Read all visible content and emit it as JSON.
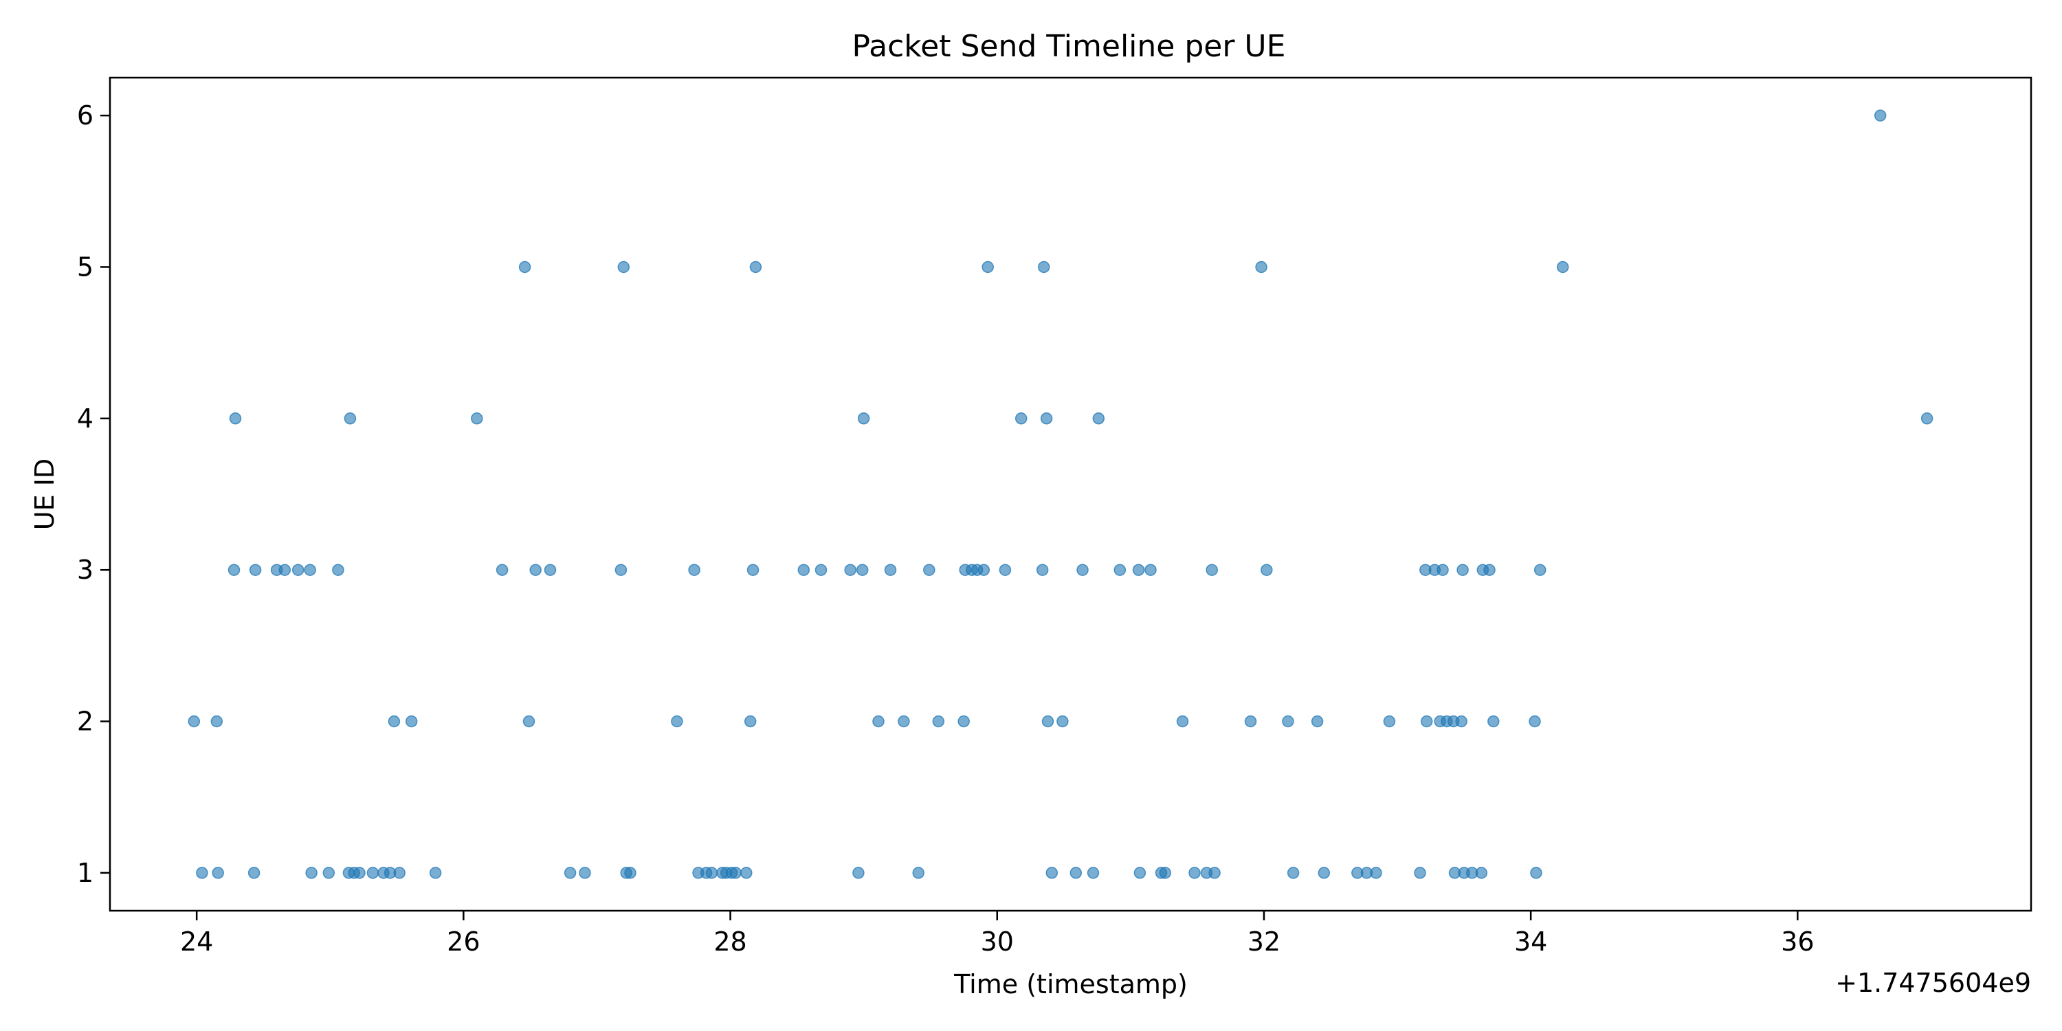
{
  "chart_data": {
    "type": "scatter",
    "title": "Packet Send Timeline per UE",
    "xlabel": "Time (timestamp)",
    "ylabel": "UE ID",
    "x_offset_label": "+1.7475604e9",
    "xlim": [
      23.35,
      37.75
    ],
    "ylim": [
      0.75,
      6.25
    ],
    "xticks": [
      24,
      26,
      28,
      30,
      32,
      34,
      36
    ],
    "yticks": [
      1,
      2,
      3,
      4,
      5,
      6
    ],
    "grid": false,
    "color": "#1f77b4",
    "series": [
      {
        "points": [
          [
            23.98,
            2
          ],
          [
            24.15,
            2
          ],
          [
            24.04,
            1
          ],
          [
            24.16,
            1
          ],
          [
            24.43,
            1
          ],
          [
            24.29,
            4
          ],
          [
            24.28,
            3
          ],
          [
            24.44,
            3
          ],
          [
            24.6,
            3
          ],
          [
            24.66,
            3
          ],
          [
            24.76,
            3
          ],
          [
            24.85,
            3
          ],
          [
            25.06,
            3
          ],
          [
            24.86,
            1
          ],
          [
            24.99,
            1
          ],
          [
            25.14,
            1
          ],
          [
            25.18,
            1
          ],
          [
            25.22,
            1
          ],
          [
            25.32,
            1
          ],
          [
            25.4,
            1
          ],
          [
            25.45,
            1
          ],
          [
            25.52,
            1
          ],
          [
            25.79,
            1
          ],
          [
            25.15,
            4
          ],
          [
            25.48,
            2
          ],
          [
            25.61,
            2
          ],
          [
            26.1,
            4
          ],
          [
            26.29,
            3
          ],
          [
            26.46,
            5
          ],
          [
            26.49,
            2
          ],
          [
            26.54,
            3
          ],
          [
            26.65,
            3
          ],
          [
            26.8,
            1
          ],
          [
            26.91,
            1
          ],
          [
            27.2,
            5
          ],
          [
            27.18,
            3
          ],
          [
            27.22,
            1
          ],
          [
            27.25,
            1
          ],
          [
            27.6,
            2
          ],
          [
            27.73,
            3
          ],
          [
            27.76,
            1
          ],
          [
            27.82,
            1
          ],
          [
            27.86,
            1
          ],
          [
            27.94,
            1
          ],
          [
            27.97,
            1
          ],
          [
            28.01,
            1
          ],
          [
            28.04,
            1
          ],
          [
            28.12,
            1
          ],
          [
            28.15,
            2
          ],
          [
            28.17,
            3
          ],
          [
            28.19,
            5
          ],
          [
            28.55,
            3
          ],
          [
            28.68,
            3
          ],
          [
            28.9,
            3
          ],
          [
            28.99,
            3
          ],
          [
            28.96,
            1
          ],
          [
            29.0,
            4
          ],
          [
            29.11,
            2
          ],
          [
            29.2,
            3
          ],
          [
            29.3,
            2
          ],
          [
            29.41,
            1
          ],
          [
            29.49,
            3
          ],
          [
            29.56,
            2
          ],
          [
            29.75,
            2
          ],
          [
            29.76,
            3
          ],
          [
            29.81,
            3
          ],
          [
            29.85,
            3
          ],
          [
            29.9,
            3
          ],
          [
            29.93,
            5
          ],
          [
            30.06,
            3
          ],
          [
            30.18,
            4
          ],
          [
            30.34,
            3
          ],
          [
            30.35,
            5
          ],
          [
            30.37,
            4
          ],
          [
            30.38,
            2
          ],
          [
            30.41,
            1
          ],
          [
            30.49,
            2
          ],
          [
            30.59,
            1
          ],
          [
            30.64,
            3
          ],
          [
            30.72,
            1
          ],
          [
            30.76,
            4
          ],
          [
            30.92,
            3
          ],
          [
            31.06,
            3
          ],
          [
            31.07,
            1
          ],
          [
            31.15,
            3
          ],
          [
            31.23,
            1
          ],
          [
            31.26,
            1
          ],
          [
            31.39,
            2
          ],
          [
            31.48,
            1
          ],
          [
            31.57,
            1
          ],
          [
            31.61,
            3
          ],
          [
            31.63,
            1
          ],
          [
            31.9,
            2
          ],
          [
            31.98,
            5
          ],
          [
            32.02,
            3
          ],
          [
            32.18,
            2
          ],
          [
            32.22,
            1
          ],
          [
            32.4,
            2
          ],
          [
            32.45,
            1
          ],
          [
            32.7,
            1
          ],
          [
            32.77,
            1
          ],
          [
            32.84,
            1
          ],
          [
            32.94,
            2
          ],
          [
            33.17,
            1
          ],
          [
            33.21,
            3
          ],
          [
            33.22,
            2
          ],
          [
            33.28,
            3
          ],
          [
            33.32,
            2
          ],
          [
            33.34,
            3
          ],
          [
            33.37,
            2
          ],
          [
            33.42,
            2
          ],
          [
            33.43,
            1
          ],
          [
            33.48,
            2
          ],
          [
            33.49,
            3
          ],
          [
            33.5,
            1
          ],
          [
            33.56,
            1
          ],
          [
            33.63,
            1
          ],
          [
            33.64,
            3
          ],
          [
            33.69,
            3
          ],
          [
            33.72,
            2
          ],
          [
            34.03,
            2
          ],
          [
            34.04,
            1
          ],
          [
            34.07,
            3
          ],
          [
            34.24,
            5
          ],
          [
            36.62,
            6
          ],
          [
            36.97,
            4
          ]
        ]
      }
    ]
  }
}
